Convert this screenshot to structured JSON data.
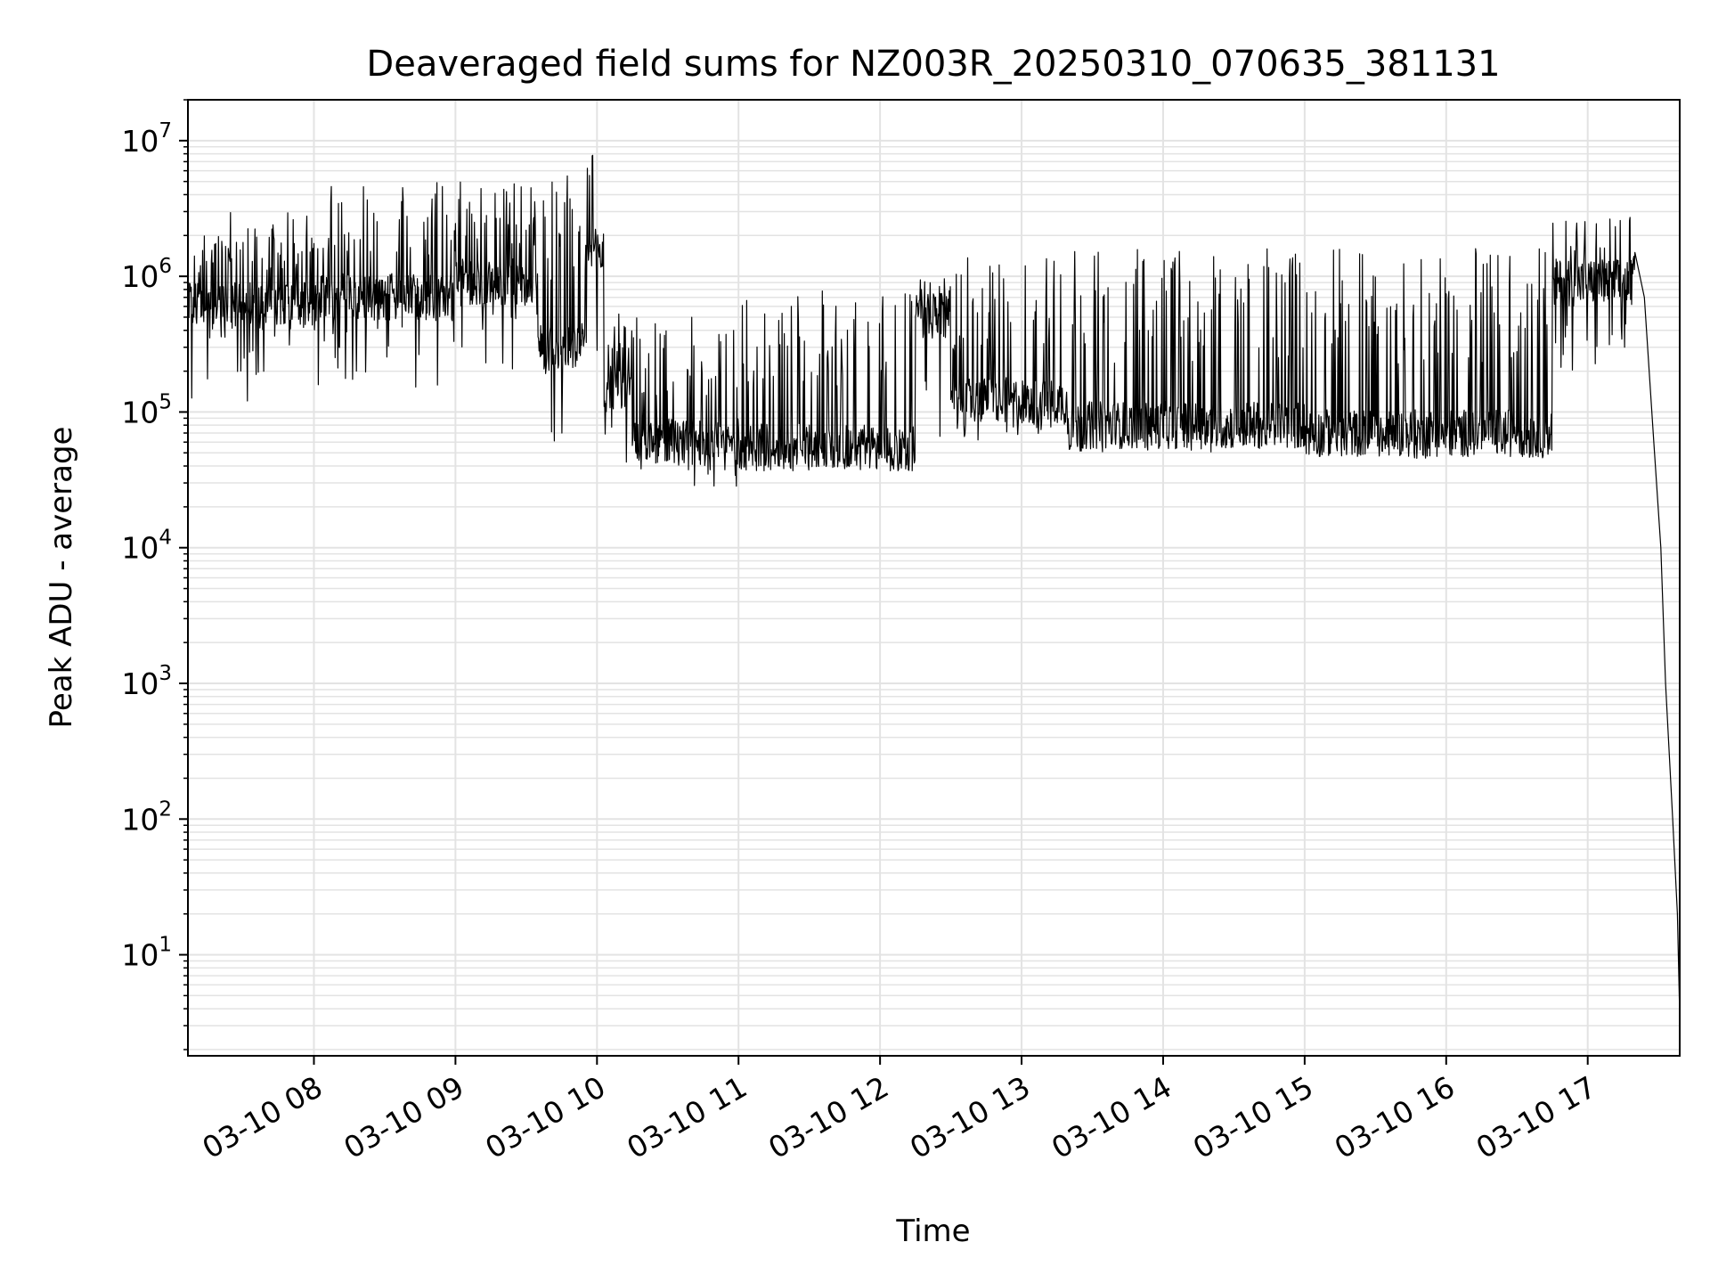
{
  "chart_data": {
    "type": "line",
    "title": "Deaveraged field sums for NZ003R_20250310_070635_381131",
    "xlabel": "Time",
    "ylabel": "Peak ADU - average",
    "yscale": "log",
    "ylim": [
      1.8,
      20000000
    ],
    "xlim": [
      "2025-03-10 07:06:35",
      "2025-03-10 17:39:00"
    ],
    "grid": true,
    "line_color": "#000000",
    "grid_color": "#e3e3e3",
    "x_ticks": [
      {
        "t": "2025-03-10 08:00",
        "label": "03-10 08"
      },
      {
        "t": "2025-03-10 09:00",
        "label": "03-10 09"
      },
      {
        "t": "2025-03-10 10:00",
        "label": "03-10 10"
      },
      {
        "t": "2025-03-10 11:00",
        "label": "03-10 11"
      },
      {
        "t": "2025-03-10 12:00",
        "label": "03-10 12"
      },
      {
        "t": "2025-03-10 13:00",
        "label": "03-10 13"
      },
      {
        "t": "2025-03-10 14:00",
        "label": "03-10 14"
      },
      {
        "t": "2025-03-10 15:00",
        "label": "03-10 15"
      },
      {
        "t": "2025-03-10 16:00",
        "label": "03-10 16"
      },
      {
        "t": "2025-03-10 17:00",
        "label": "03-10 17"
      }
    ],
    "y_ticks": [
      {
        "value": 10,
        "base": "10",
        "exp": "1"
      },
      {
        "value": 100,
        "base": "10",
        "exp": "2"
      },
      {
        "value": 1000,
        "base": "10",
        "exp": "3"
      },
      {
        "value": 10000,
        "base": "10",
        "exp": "4"
      },
      {
        "value": 100000,
        "base": "10",
        "exp": "5"
      },
      {
        "value": 1000000,
        "base": "10",
        "exp": "6"
      },
      {
        "value": 10000000,
        "base": "10",
        "exp": "7"
      }
    ],
    "series": [
      {
        "segments": [
          {
            "start": "2025-03-10 07:06:35",
            "end": "2025-03-10 08:00",
            "base": 600000,
            "low": 120000,
            "high": 3000000
          },
          {
            "start": "2025-03-10 08:00",
            "end": "2025-03-10 09:00",
            "base": 700000,
            "low": 150000,
            "high": 5000000
          },
          {
            "start": "2025-03-10 09:00",
            "end": "2025-03-10 09:35",
            "base": 900000,
            "low": 200000,
            "high": 5000000
          },
          {
            "start": "2025-03-10 09:35",
            "end": "2025-03-10 09:55",
            "base": 300000,
            "low": 40000,
            "high": 7000000
          },
          {
            "start": "2025-03-10 09:55",
            "end": "2025-03-10 10:03",
            "base": 1500000,
            "low": 200000,
            "high": 9000000
          },
          {
            "start": "2025-03-10 10:03",
            "end": "2025-03-10 10:15",
            "base": 150000,
            "low": 35000,
            "high": 600000
          },
          {
            "start": "2025-03-10 10:15",
            "end": "2025-03-10 11:00",
            "base": 60000,
            "low": 27000,
            "high": 500000
          },
          {
            "start": "2025-03-10 11:00",
            "end": "2025-03-10 12:15",
            "base": 55000,
            "low": 35000,
            "high": 800000
          },
          {
            "start": "2025-03-10 12:15",
            "end": "2025-03-10 12:30",
            "base": 500000,
            "low": 40000,
            "high": 1000000
          },
          {
            "start": "2025-03-10 12:30",
            "end": "2025-03-10 13:20",
            "base": 120000,
            "low": 60000,
            "high": 1400000
          },
          {
            "start": "2025-03-10 13:20",
            "end": "2025-03-10 15:00",
            "base": 80000,
            "low": 50000,
            "high": 1600000
          },
          {
            "start": "2025-03-10 15:00",
            "end": "2025-03-10 16:45",
            "base": 70000,
            "low": 45000,
            "high": 1650000
          },
          {
            "start": "2025-03-10 16:45",
            "end": "2025-03-10 17:20",
            "base": 900000,
            "low": 200000,
            "high": 2800000
          }
        ],
        "tail": [
          {
            "t": "2025-03-10 17:20",
            "value": 1500000
          },
          {
            "t": "2025-03-10 17:24",
            "value": 700000
          },
          {
            "t": "2025-03-10 17:28",
            "value": 60000
          },
          {
            "t": "2025-03-10 17:31",
            "value": 10000
          },
          {
            "t": "2025-03-10 17:33",
            "value": 1000
          },
          {
            "t": "2025-03-10 17:36",
            "value": 100
          },
          {
            "t": "2025-03-10 17:38",
            "value": 20
          },
          {
            "t": "2025-03-10 17:39",
            "value": 3.5
          }
        ]
      }
    ]
  }
}
